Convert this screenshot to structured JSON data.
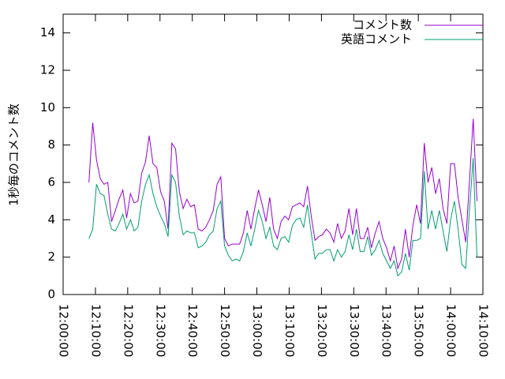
{
  "chart_data": {
    "type": "line",
    "ylabel": "1秒毎のコメント数",
    "x": [
      "12:08:00",
      "12:09:10",
      "12:10:20",
      "12:11:30",
      "12:12:40",
      "12:13:50",
      "12:15:00",
      "12:16:10",
      "12:17:20",
      "12:18:30",
      "12:19:40",
      "12:20:50",
      "12:22:00",
      "12:23:10",
      "12:24:20",
      "12:25:30",
      "12:26:40",
      "12:27:50",
      "12:29:00",
      "12:30:10",
      "12:31:20",
      "12:32:30",
      "12:33:40",
      "12:34:50",
      "12:36:00",
      "12:37:10",
      "12:38:20",
      "12:39:30",
      "12:40:40",
      "12:41:50",
      "12:43:00",
      "12:44:10",
      "12:45:20",
      "12:46:30",
      "12:47:40",
      "12:48:50",
      "12:50:00",
      "12:51:10",
      "12:52:20",
      "12:53:30",
      "12:54:40",
      "12:55:50",
      "12:57:00",
      "12:58:10",
      "12:59:20",
      "13:00:30",
      "13:01:40",
      "13:02:50",
      "13:04:00",
      "13:05:10",
      "13:06:20",
      "13:07:30",
      "13:08:40",
      "13:09:50",
      "13:11:00",
      "13:12:10",
      "13:13:20",
      "13:14:30",
      "13:15:40",
      "13:16:50",
      "13:18:00",
      "13:19:10",
      "13:20:20",
      "13:21:30",
      "13:22:40",
      "13:23:50",
      "13:25:00",
      "13:26:10",
      "13:27:20",
      "13:28:30",
      "13:29:40",
      "13:30:50",
      "13:32:00",
      "13:33:10",
      "13:34:20",
      "13:35:30",
      "13:36:40",
      "13:37:50",
      "13:39:00",
      "13:40:10",
      "13:41:20",
      "13:42:30",
      "13:43:40",
      "13:44:50",
      "13:46:00",
      "13:47:10",
      "13:48:20",
      "13:49:30",
      "13:50:40",
      "13:51:50",
      "13:53:00",
      "13:54:10",
      "13:55:20",
      "13:56:30",
      "13:57:40",
      "13:58:50",
      "14:00:00",
      "14:01:10",
      "14:02:20",
      "14:03:30",
      "14:04:40",
      "14:05:50",
      "14:07:00",
      "14:08:10"
    ],
    "series": [
      {
        "name": "コメント数",
        "color": "#9400d3",
        "values": [
          6.0,
          9.2,
          7.2,
          6.2,
          5.9,
          6.0,
          3.9,
          4.5,
          5.1,
          5.6,
          4.1,
          5.4,
          4.9,
          5.0,
          6.5,
          7.1,
          8.5,
          7.0,
          6.8,
          5.5,
          5.0,
          3.5,
          8.1,
          7.8,
          5.5,
          4.6,
          5.1,
          4.7,
          4.8,
          3.5,
          3.4,
          3.6,
          4.0,
          4.5,
          5.9,
          6.3,
          3.0,
          2.6,
          2.7,
          2.7,
          2.7,
          3.3,
          4.5,
          3.5,
          4.6,
          5.6,
          4.8,
          3.9,
          5.2,
          3.5,
          3.0,
          3.9,
          4.2,
          4.0,
          4.7,
          4.8,
          4.9,
          4.7,
          5.8,
          4.2,
          2.9,
          3.1,
          3.2,
          3.5,
          3.3,
          2.8,
          3.8,
          3.0,
          3.4,
          4.6,
          3.2,
          4.6,
          3.0,
          3.0,
          3.6,
          2.5,
          3.3,
          3.9,
          3.0,
          2.5,
          1.8,
          2.6,
          1.4,
          1.9,
          3.5,
          2.0,
          3.7,
          4.8,
          3.8,
          8.1,
          6.0,
          6.8,
          5.4,
          6.2,
          4.6,
          3.8,
          7.0,
          7.0,
          5.2,
          4.0,
          2.8,
          6.0,
          9.4,
          5.0
        ]
      },
      {
        "name": "英語コメント",
        "color": "#009e73",
        "values": [
          3.0,
          3.5,
          5.9,
          5.4,
          5.3,
          4.3,
          3.5,
          3.4,
          3.8,
          4.3,
          3.5,
          4.0,
          3.4,
          3.6,
          5.0,
          5.9,
          6.4,
          5.4,
          4.7,
          4.2,
          3.8,
          3.1,
          6.4,
          6.0,
          4.2,
          3.2,
          3.4,
          3.3,
          3.3,
          2.5,
          2.6,
          2.8,
          3.2,
          3.4,
          4.6,
          5.0,
          2.6,
          2.1,
          1.8,
          1.9,
          1.8,
          2.3,
          3.3,
          2.6,
          3.5,
          4.5,
          3.9,
          3.0,
          3.6,
          2.6,
          2.4,
          3.0,
          3.1,
          2.8,
          3.7,
          4.0,
          4.1,
          3.6,
          4.8,
          3.3,
          1.9,
          2.2,
          2.2,
          2.4,
          2.4,
          1.8,
          2.4,
          2.0,
          2.3,
          3.2,
          2.4,
          3.5,
          2.3,
          2.3,
          3.1,
          2.1,
          2.4,
          2.9,
          2.2,
          1.8,
          1.4,
          1.8,
          1.0,
          1.2,
          2.2,
          1.3,
          2.9,
          2.9,
          3.0,
          6.6,
          3.5,
          4.5,
          3.5,
          4.5,
          3.4,
          2.3,
          4.0,
          5.0,
          3.5,
          1.6,
          1.4,
          4.5,
          7.3,
          2.0
        ]
      }
    ],
    "xlim": [
      "12:00:00",
      "14:10:00"
    ],
    "xticks": [
      "12:00:00",
      "12:10:00",
      "12:20:00",
      "12:30:00",
      "12:40:00",
      "12:50:00",
      "13:00:00",
      "13:10:00",
      "13:20:00",
      "13:30:00",
      "13:40:00",
      "13:50:00",
      "14:00:00",
      "14:10:00"
    ],
    "ylim": [
      0,
      15
    ],
    "yticks": [
      0,
      2,
      4,
      6,
      8,
      10,
      12,
      14
    ],
    "legend": "top-right"
  }
}
